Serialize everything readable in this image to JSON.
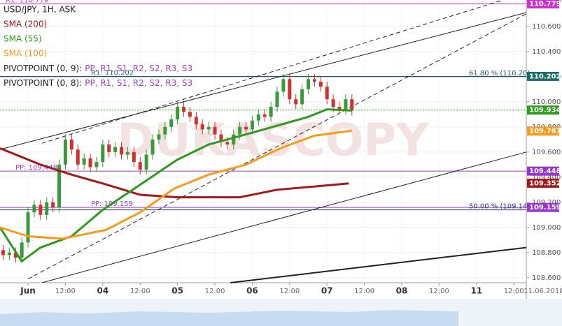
{
  "chart_data": {
    "type": "candlestick",
    "title": "USD/JPY, 1H, ASK",
    "watermark": "DUKASCOPY",
    "xlim": [
      -9,
      160
    ],
    "ylim": [
      108.56,
      110.81
    ],
    "xticks": [
      {
        "value": 0,
        "label": "Jun"
      },
      {
        "value": 12,
        "label": "12:00"
      },
      {
        "value": 24,
        "label": "04"
      },
      {
        "value": 36,
        "label": "12:00"
      },
      {
        "value": 48,
        "label": "05"
      },
      {
        "value": 60,
        "label": "12:00"
      },
      {
        "value": 72,
        "label": "06"
      },
      {
        "value": 84,
        "label": "12:00"
      },
      {
        "value": 96,
        "label": "07"
      },
      {
        "value": 108,
        "label": "12:00"
      },
      {
        "value": 120,
        "label": "08"
      },
      {
        "value": 132,
        "label": "12:00"
      },
      {
        "value": 144,
        "label": "11"
      },
      {
        "value": 156,
        "label": "12:00"
      }
    ],
    "x_axis_date": "11.06.2018",
    "yticks": [
      {
        "value": 108.6,
        "label": "108.600"
      },
      {
        "value": 108.8,
        "label": "108.800"
      },
      {
        "value": 109,
        "label": "109.000"
      },
      {
        "value": 109.2,
        "label": "109.200"
      },
      {
        "value": 109.4,
        "label": "109.400"
      },
      {
        "value": 109.6,
        "label": "109.600"
      },
      {
        "value": 109.8,
        "label": "109.800"
      },
      {
        "value": 110,
        "label": "110.000"
      },
      {
        "value": 110.2,
        "label": "110.200"
      },
      {
        "value": 110.4,
        "label": "110.400"
      },
      {
        "value": 110.6,
        "label": "110.600"
      },
      {
        "value": 110.8,
        "label": "110.800"
      }
    ],
    "grid": true,
    "up_color": "#3a9a3a",
    "down_color": "#d03030",
    "x": [
      -8,
      -6,
      -4,
      -2,
      0,
      2,
      4,
      6,
      8,
      10,
      12,
      14,
      16,
      18,
      20,
      22,
      24,
      26,
      28,
      30,
      32,
      34,
      36,
      38,
      40,
      42,
      44,
      46,
      48,
      50,
      52,
      54,
      56,
      58,
      60,
      62,
      64,
      66,
      68,
      70,
      72,
      74,
      76,
      78,
      80,
      82,
      84,
      86,
      88,
      90,
      92,
      94,
      96,
      98,
      100,
      102,
      104
    ],
    "open": [
      108.82,
      108.78,
      108.8,
      108.76,
      108.88,
      109.12,
      109.18,
      109.1,
      109.2,
      109.16,
      109.5,
      109.7,
      109.62,
      109.5,
      109.55,
      109.48,
      109.52,
      109.66,
      109.6,
      109.64,
      109.58,
      109.6,
      109.52,
      109.46,
      109.58,
      109.7,
      109.74,
      109.8,
      109.86,
      109.96,
      109.92,
      109.88,
      109.82,
      109.78,
      109.8,
      109.74,
      109.68,
      109.66,
      109.74,
      109.8,
      109.78,
      109.85,
      109.9,
      109.88,
      109.96,
      110.08,
      110.18,
      110.02,
      109.98,
      110.1,
      110.18,
      110.16,
      110.12,
      110.02,
      109.96,
      109.94,
      110.02
    ],
    "high": [
      108.86,
      108.84,
      108.84,
      108.92,
      109.16,
      109.22,
      109.22,
      109.24,
      109.24,
      109.54,
      109.74,
      109.74,
      109.66,
      109.59,
      109.59,
      109.56,
      109.7,
      109.7,
      109.68,
      109.68,
      109.64,
      109.64,
      109.56,
      109.62,
      109.74,
      109.78,
      109.84,
      109.9,
      110.0,
      110.0,
      109.96,
      109.92,
      109.86,
      109.84,
      109.84,
      109.78,
      109.72,
      109.78,
      109.84,
      109.84,
      109.89,
      109.94,
      109.94,
      110.0,
      110.12,
      110.22,
      110.22,
      110.06,
      110.14,
      110.22,
      110.22,
      110.2,
      110.16,
      110.06,
      110.0,
      110.06,
      110.06
    ],
    "low": [
      108.74,
      108.74,
      108.72,
      108.72,
      108.84,
      109.08,
      109.06,
      109.06,
      109.12,
      109.12,
      109.46,
      109.58,
      109.46,
      109.46,
      109.44,
      109.44,
      109.48,
      109.56,
      109.56,
      109.54,
      109.54,
      109.48,
      109.42,
      109.42,
      109.54,
      109.66,
      109.7,
      109.76,
      109.82,
      109.88,
      109.84,
      109.78,
      109.74,
      109.74,
      109.7,
      109.64,
      109.62,
      109.62,
      109.7,
      109.74,
      109.74,
      109.81,
      109.84,
      109.84,
      109.92,
      110.04,
      109.98,
      109.94,
      109.94,
      110.06,
      110.12,
      110.08,
      109.98,
      109.92,
      109.9,
      109.9,
      109.89
    ],
    "close": [
      108.78,
      108.8,
      108.76,
      108.88,
      109.12,
      109.18,
      109.1,
      109.2,
      109.16,
      109.5,
      109.7,
      109.62,
      109.5,
      109.55,
      109.48,
      109.52,
      109.66,
      109.6,
      109.64,
      109.58,
      109.6,
      109.52,
      109.46,
      109.58,
      109.7,
      109.74,
      109.8,
      109.86,
      109.96,
      109.92,
      109.88,
      109.82,
      109.78,
      109.8,
      109.74,
      109.68,
      109.66,
      109.74,
      109.8,
      109.78,
      109.85,
      109.9,
      109.88,
      109.96,
      110.08,
      110.18,
      110.02,
      109.98,
      110.1,
      110.18,
      110.16,
      110.12,
      110.02,
      109.96,
      109.94,
      110.02,
      109.93
    ],
    "series": [
      {
        "name": "SMA (200)",
        "color": "#a3191b",
        "x": [
          -9,
          4,
          14,
          24,
          36,
          48,
          68,
          80,
          94,
          103
        ],
        "values": [
          109.63,
          109.5,
          109.42,
          109.35,
          109.26,
          109.24,
          109.24,
          109.3,
          109.33,
          109.35
        ]
      },
      {
        "name": "SMA (55)",
        "color": "#2f9a1e",
        "x": [
          -9,
          -2,
          4,
          14,
          24,
          36,
          48,
          58,
          70,
          80,
          90,
          96,
          104
        ],
        "values": [
          109.0,
          108.73,
          108.84,
          108.93,
          109.14,
          109.34,
          109.54,
          109.66,
          109.74,
          109.81,
          109.88,
          109.94,
          109.93
        ]
      },
      {
        "name": "SMA (100)",
        "color": "#f59b1d",
        "x": [
          -9,
          0,
          11,
          25,
          36,
          47,
          58,
          70,
          81,
          92,
          104
        ],
        "values": [
          109.0,
          108.93,
          108.91,
          108.98,
          109.12,
          109.31,
          109.42,
          109.5,
          109.63,
          109.73,
          109.77
        ]
      }
    ],
    "pivot_legend": [
      {
        "label": "PIVOTPOINT (0, 9):",
        "items": "PP, R1, S1, R2, S2, R3, S3"
      },
      {
        "label": "PIVOTPOINT (0, 8):",
        "items": "PP, R1, S1, R2, S2, R3, S3"
      }
    ],
    "levels": [
      {
        "value": 110.779,
        "label": "R1: 110.779",
        "color": "#c040c0",
        "side": "left"
      },
      {
        "value": 110.202,
        "label": "R1: 110.202",
        "color": "#1f6b66",
        "side": "left"
      },
      {
        "value": 110.2,
        "label": "61.80 % (110.20)",
        "color": "#1f4f6b",
        "side": "right"
      },
      {
        "value": 109.448,
        "label": "PP: 109.448",
        "color": "#a040c0",
        "side": "left"
      },
      {
        "value": 109.159,
        "label": "PP: 109.159",
        "color": "#a040c0",
        "side": "left"
      },
      {
        "value": 109.14,
        "label": "50.00 % (109.14)",
        "color": "#2a3a7a",
        "side": "right"
      }
    ],
    "price_tags": [
      {
        "value": 110.779,
        "color": "#cc33cc"
      },
      {
        "value": 110.202,
        "color": "#1f6b66"
      },
      {
        "value": 109.934,
        "color": "#2f9a1e"
      },
      {
        "value": 109.767,
        "color": "#f59b1d"
      },
      {
        "value": 109.448,
        "color": "#9933cc"
      },
      {
        "value": 109.352,
        "color": "#a3191b"
      },
      {
        "value": 109.159,
        "color": "#9933cc"
      }
    ],
    "trend_lines": [
      {
        "x": [
          -9,
          160
        ],
        "y": [
          109.62,
          110.71
        ],
        "style": "solid",
        "width": 1
      },
      {
        "x": [
          4.5,
          152.5
        ],
        "y": [
          109.67,
          110.81
        ],
        "style": "dashed",
        "width": 1
      },
      {
        "x": [
          0,
          160
        ],
        "y": [
          108.59,
          110.7
        ],
        "style": "dashed",
        "width": 1
      },
      {
        "x": [
          4.5,
          160
        ],
        "y": [
          108.56,
          109.6
        ],
        "style": "solid",
        "width": 1
      },
      {
        "x": [
          65,
          160
        ],
        "y": [
          108.56,
          108.84
        ],
        "style": "solid",
        "width": 2
      }
    ]
  }
}
